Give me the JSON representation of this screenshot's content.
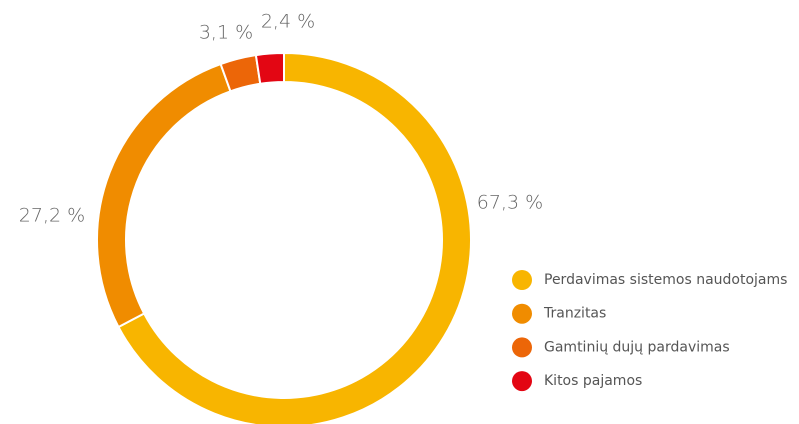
{
  "chart_data": {
    "type": "donut",
    "categories": [
      "Perdavimas sistemos naudotojams",
      "Tranzitas",
      "Gamtinių dujų pardavimas",
      "Kitos pajamos"
    ],
    "values": [
      67.3,
      27.2,
      3.1,
      2.4
    ],
    "value_labels": [
      "67,3 %",
      "27,2 %",
      "3,1 %",
      "2,4 %"
    ],
    "colors": [
      "#F8B500",
      "#F08C00",
      "#EC6608",
      "#E30613"
    ],
    "legend": "right"
  }
}
